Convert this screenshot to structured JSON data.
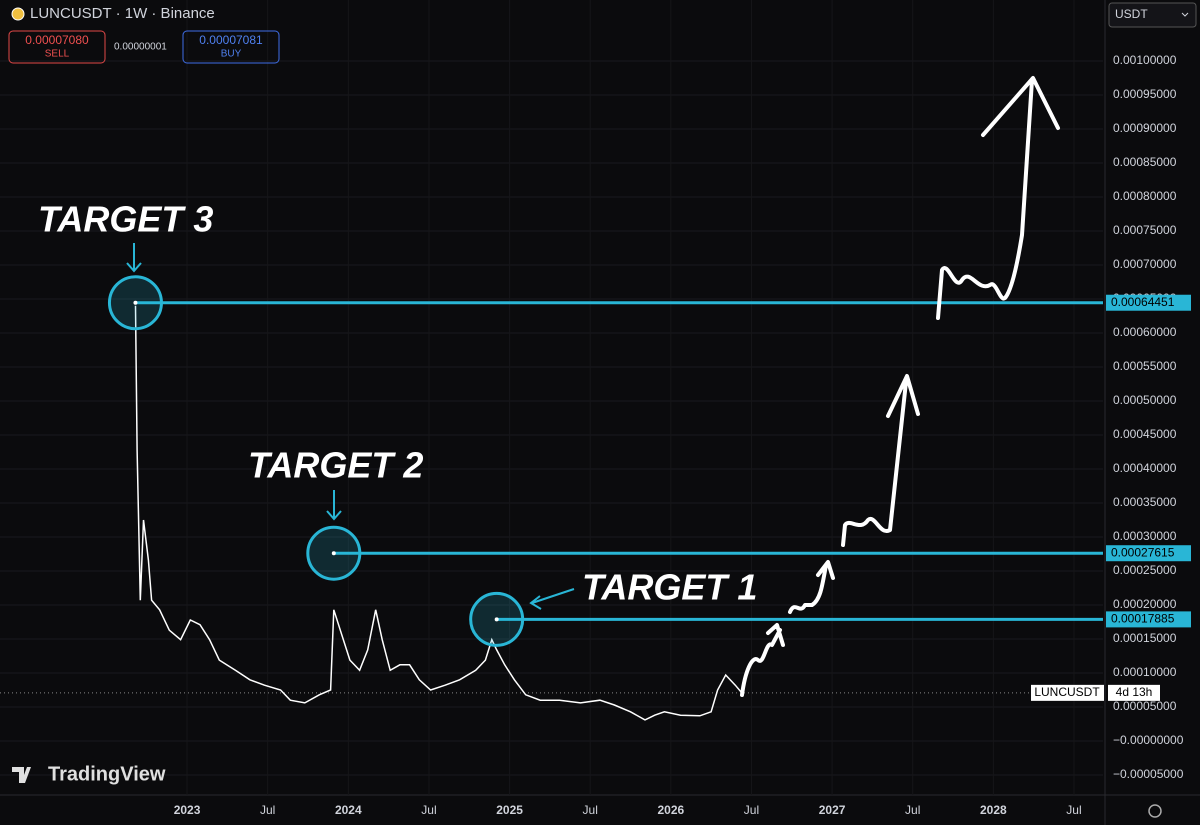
{
  "header": {
    "symbol": "LUNCUSDT · 1W · Binance",
    "sell_price": "0.00007080",
    "sell": "SELL",
    "spread": "0.00000001",
    "buy_price": "0.00007081",
    "buy": "BUY",
    "currency": "USDT",
    "brand": "TradingView"
  },
  "chart_data": {
    "type": "line",
    "x": [
      2022.68,
      2022.69,
      2022.71,
      2022.73,
      2022.76,
      2022.78,
      2022.83,
      2022.89,
      2022.96,
      2023.02,
      2023.08,
      2023.14,
      2023.2,
      2023.3,
      2023.39,
      2023.48,
      2023.58,
      2023.64,
      2023.73,
      2023.82,
      2023.89,
      2023.91,
      2023.95,
      2024.01,
      2024.07,
      2024.12,
      2024.17,
      2024.21,
      2024.26,
      2024.32,
      2024.38,
      2024.44,
      2024.51,
      2024.6,
      2024.69,
      2024.79,
      2024.85,
      2024.89,
      2024.92,
      2024.97,
      2025.03,
      2025.1,
      2025.19,
      2025.31,
      2025.44,
      2025.56,
      2025.65,
      2025.75,
      2025.84,
      2025.9,
      2025.96,
      2026.06,
      2026.18,
      2026.25,
      2026.29,
      2026.34,
      2026.4,
      2026.44
    ],
    "series": [
      {
        "name": "LUNCUSDT",
        "color": "#ffffff",
        "values": [
          0.00064,
          0.000428,
          0.000207,
          0.000325,
          0.000266,
          0.000207,
          0.000193,
          0.000163,
          0.000149,
          0.000178,
          0.000171,
          0.000149,
          0.000119,
          0.000104,
          9e-05,
          8.2e-05,
          7.5e-05,
          6e-05,
          5.6e-05,
          6.8e-05,
          7.5e-05,
          0.000193,
          0.000163,
          0.000119,
          0.000104,
          0.000134,
          0.000193,
          0.000149,
          0.000104,
          0.000112,
          0.000112,
          9e-05,
          7.5e-05,
          8.2e-05,
          9e-05,
          0.000104,
          0.000119,
          0.000149,
          0.000134,
          0.000112,
          9e-05,
          6.8e-05,
          6e-05,
          6e-05,
          5.6e-05,
          6e-05,
          5.3e-05,
          4.3e-05,
          3.1e-05,
          3.8e-05,
          4.3e-05,
          3.8e-05,
          3.7e-05,
          4.3e-05,
          7.5e-05,
          9.7e-05,
          8.2e-05,
          7.08e-05
        ]
      }
    ],
    "current_price": 7.08e-05,
    "current_label": "LUNCUSDT",
    "countdown": "4d 13h",
    "levels": [
      {
        "value": 0.00064451,
        "start": 2022.68,
        "color": "#29b6d6",
        "annotation": "TARGET 3"
      },
      {
        "value": 0.00027615,
        "start": 2023.91,
        "color": "#29b6d6",
        "annotation": "TARGET 2"
      },
      {
        "value": 0.00017885,
        "start": 2024.92,
        "color": "#29b6d6",
        "annotation": "TARGET 1"
      }
    ],
    "xlim": [
      2021.84,
      2028.68
    ],
    "ylim": [
      -7.94e-05,
      0.0010897
    ],
    "xticks": [
      {
        "value": 2023,
        "label": "2023"
      },
      {
        "value": 2023.5,
        "label": "Jul"
      },
      {
        "value": 2024,
        "label": "2024"
      },
      {
        "value": 2024.5,
        "label": "Jul"
      },
      {
        "value": 2025,
        "label": "2025"
      },
      {
        "value": 2025.5,
        "label": "Jul"
      },
      {
        "value": 2026,
        "label": "2026"
      },
      {
        "value": 2026.5,
        "label": "Jul"
      },
      {
        "value": 2027,
        "label": "2027"
      },
      {
        "value": 2027.5,
        "label": "Jul"
      },
      {
        "value": 2028,
        "label": "2028"
      },
      {
        "value": 2028.5,
        "label": "Jul"
      }
    ],
    "yticks": [
      {
        "value": 0.001,
        "label": "0.00100000"
      },
      {
        "value": 0.00095,
        "label": "0.00095000"
      },
      {
        "value": 0.0009,
        "label": "0.00090000"
      },
      {
        "value": 0.00085,
        "label": "0.00085000"
      },
      {
        "value": 0.0008,
        "label": "0.00080000"
      },
      {
        "value": 0.00075,
        "label": "0.00075000"
      },
      {
        "value": 0.0007,
        "label": "0.00070000"
      },
      {
        "value": 0.00065,
        "label": "0.00065000"
      },
      {
        "value": 0.0006,
        "label": "0.00060000"
      },
      {
        "value": 0.00055,
        "label": "0.00055000"
      },
      {
        "value": 0.0005,
        "label": "0.00050000"
      },
      {
        "value": 0.00045,
        "label": "0.00045000"
      },
      {
        "value": 0.0004,
        "label": "0.00040000"
      },
      {
        "value": 0.00035,
        "label": "0.00035000"
      },
      {
        "value": 0.0003,
        "label": "0.00030000"
      },
      {
        "value": 0.00025,
        "label": "0.00025000"
      },
      {
        "value": 0.0002,
        "label": "0.00020000"
      },
      {
        "value": 0.00015,
        "label": "0.00015000"
      },
      {
        "value": 0.0001,
        "label": "0.00010000"
      },
      {
        "value": 5e-05,
        "label": "0.00005000"
      },
      {
        "value": 0,
        "label": "−0.00000000"
      },
      {
        "value": -5e-05,
        "label": "−0.00005000"
      }
    ],
    "grid": true
  }
}
